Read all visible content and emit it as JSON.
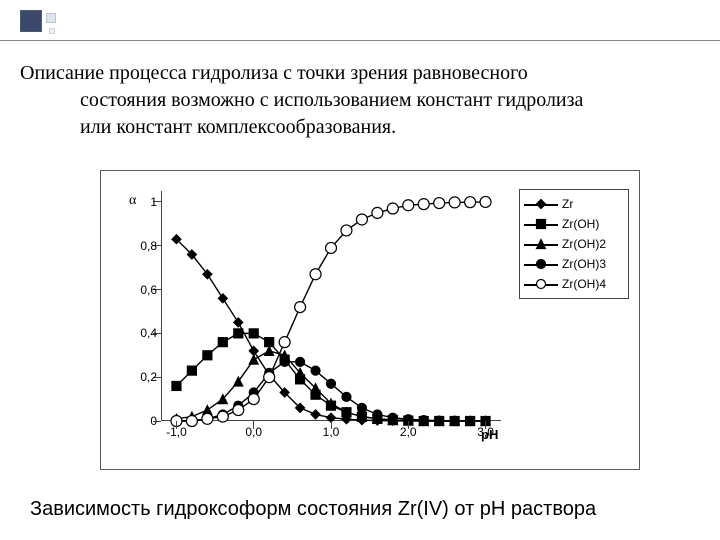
{
  "decor": {
    "color_dark": "#3b4a6b",
    "color_light": "#dfe5ef"
  },
  "paragraph": {
    "line1": "Описание процесса гидролиза с точки зрения равновесного",
    "line2": "состояния возможно с использованием констант гидролиза",
    "line3": "или констант комплексообразования."
  },
  "caption": "Зависимость гидроксоформ состояния Zr(IV) от рН раствора",
  "chart": {
    "type": "line-scatter",
    "y_label_symbol": "α",
    "x_label": "pH",
    "x_domain": [
      -1.2,
      3.2
    ],
    "y_domain": [
      0,
      1.05
    ],
    "x_ticks": [
      -1.0,
      0.0,
      1.0,
      2.0,
      3.0
    ],
    "x_tick_labels": [
      "-1,0",
      "0,0",
      "1,0",
      "2,0",
      "3,0"
    ],
    "y_ticks": [
      0,
      0.2,
      0.4,
      0.6,
      0.8,
      1.0
    ],
    "y_tick_labels": [
      "0",
      "0,2",
      "0,4",
      "0,6",
      "0,8",
      "1"
    ],
    "line_color": "#000000",
    "line_width": 1.4,
    "marker_size": 5,
    "background_color": "#ffffff",
    "border_color": "#5a5a5a",
    "tick_fontsize": 12,
    "label_fontsize": 13,
    "series": [
      {
        "name": "Zr",
        "marker": "diamond",
        "fill": "#000000",
        "x": [
          -1.0,
          -0.8,
          -0.6,
          -0.4,
          -0.2,
          0.0,
          0.2,
          0.4,
          0.6,
          0.8,
          1.0,
          1.2,
          1.4,
          1.6,
          1.8,
          2.0,
          2.2,
          2.4,
          2.6,
          2.8,
          3.0
        ],
        "y": [
          0.83,
          0.76,
          0.67,
          0.56,
          0.45,
          0.32,
          0.21,
          0.13,
          0.06,
          0.03,
          0.015,
          0.008,
          0.004,
          0.002,
          0.001,
          0.0,
          0.0,
          0.0,
          0.0,
          0.0,
          0.0
        ]
      },
      {
        "name": "Zr(OH)",
        "marker": "square",
        "fill": "#000000",
        "x": [
          -1.0,
          -0.8,
          -0.6,
          -0.4,
          -0.2,
          0.0,
          0.2,
          0.4,
          0.6,
          0.8,
          1.0,
          1.2,
          1.4,
          1.6,
          1.8,
          2.0,
          2.2,
          2.4,
          2.6,
          2.8,
          3.0
        ],
        "y": [
          0.16,
          0.23,
          0.3,
          0.36,
          0.4,
          0.4,
          0.36,
          0.28,
          0.19,
          0.12,
          0.07,
          0.04,
          0.02,
          0.01,
          0.005,
          0.002,
          0.0,
          0.0,
          0.0,
          0.0,
          0.0
        ]
      },
      {
        "name": "Zr(OH)2",
        "marker": "triangle",
        "fill": "#000000",
        "x": [
          -1.0,
          -0.8,
          -0.6,
          -0.4,
          -0.2,
          0.0,
          0.2,
          0.4,
          0.6,
          0.8,
          1.0,
          1.2,
          1.4,
          1.6,
          1.8,
          2.0,
          2.2,
          2.4,
          2.6,
          2.8,
          3.0
        ],
        "y": [
          0.01,
          0.02,
          0.05,
          0.1,
          0.18,
          0.28,
          0.32,
          0.3,
          0.22,
          0.15,
          0.08,
          0.04,
          0.02,
          0.01,
          0.004,
          0.002,
          0.0,
          0.0,
          0.0,
          0.0,
          0.0
        ]
      },
      {
        "name": "Zr(OH)3",
        "marker": "circle",
        "fill": "#000000",
        "x": [
          -1.0,
          -0.8,
          -0.6,
          -0.4,
          -0.2,
          0.0,
          0.2,
          0.4,
          0.6,
          0.8,
          1.0,
          1.2,
          1.4,
          1.6,
          1.8,
          2.0,
          2.2,
          2.4,
          2.6,
          2.8,
          3.0
        ],
        "y": [
          0.0,
          0.0,
          0.01,
          0.03,
          0.07,
          0.13,
          0.22,
          0.27,
          0.27,
          0.23,
          0.17,
          0.11,
          0.06,
          0.03,
          0.015,
          0.008,
          0.004,
          0.002,
          0.001,
          0.0,
          0.0
        ]
      },
      {
        "name": "Zr(OH)4",
        "marker": "circle",
        "fill": "#ffffff",
        "x": [
          -1.0,
          -0.8,
          -0.6,
          -0.4,
          -0.2,
          0.0,
          0.2,
          0.4,
          0.6,
          0.8,
          1.0,
          1.2,
          1.4,
          1.6,
          1.8,
          2.0,
          2.2,
          2.4,
          2.6,
          2.8,
          3.0
        ],
        "y": [
          0.0,
          0.0,
          0.01,
          0.02,
          0.05,
          0.1,
          0.2,
          0.36,
          0.52,
          0.67,
          0.79,
          0.87,
          0.92,
          0.95,
          0.97,
          0.985,
          0.99,
          0.995,
          0.998,
          0.999,
          1.0
        ]
      }
    ]
  }
}
